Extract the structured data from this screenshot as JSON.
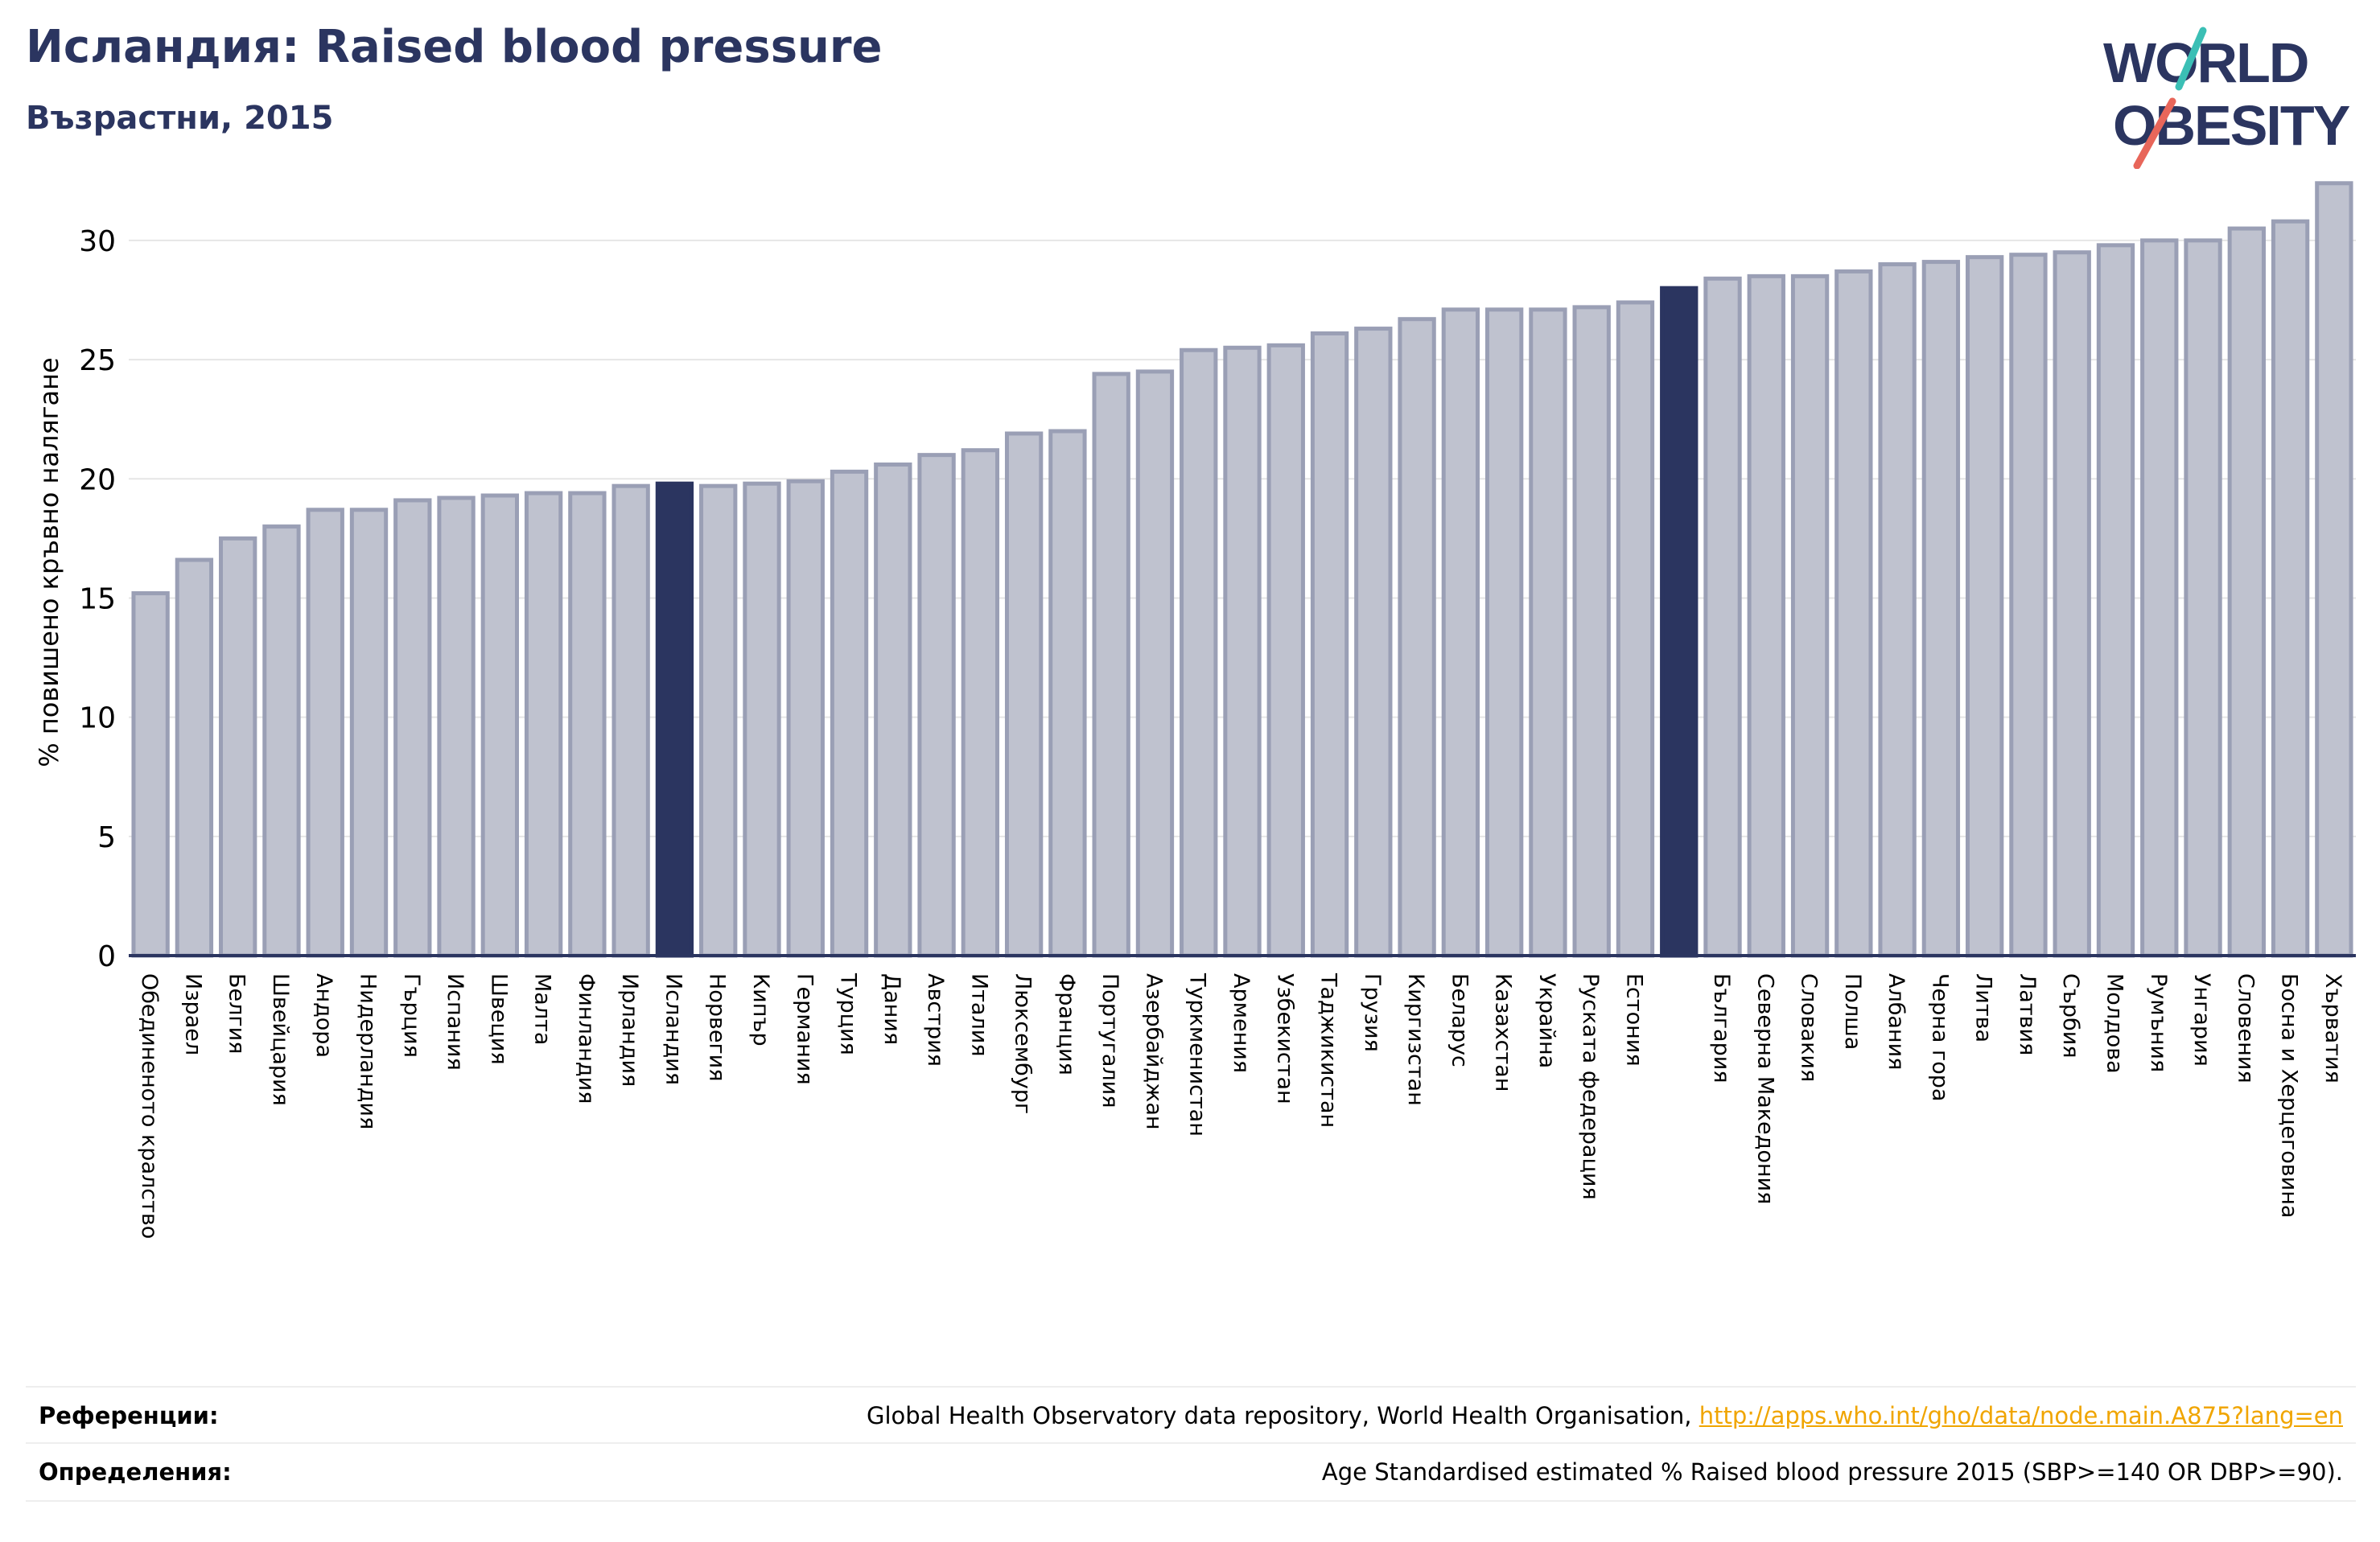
{
  "header": {
    "title": "Исландия: Raised blood pressure",
    "subtitle": "Възрастни, 2015"
  },
  "logo": {
    "line1": "WORLD",
    "line2": "OBESITY",
    "text_color": "#2b3560",
    "slash_colors": [
      "#3bbfb5",
      "#e8665a"
    ]
  },
  "footer": {
    "references_label": "Референции:",
    "references_text": "Global Health Observatory data repository, World Health Organisation, ",
    "references_link": "http://apps.who.int/gho/data/node.main.A875?lang=en",
    "definitions_label": "Определения:",
    "definitions_text": "Age Standardised estimated % Raised blood pressure 2015 (SBP>=140 OR DBP>=90)."
  },
  "colors": {
    "bar": "#bfc2cf",
    "bar_stroke": "#9a9fb5",
    "highlight": "#2b3560",
    "grid": "#e6e6e6",
    "axis": "#2b3560"
  },
  "chart_data": {
    "type": "bar",
    "title": "Исландия: Raised blood pressure",
    "subtitle": "Възрастни, 2015",
    "xlabel": "",
    "ylabel": "% повишено кръвно налягане",
    "ylim": [
      0,
      33
    ],
    "yticks": [
      0,
      5,
      10,
      15,
      20,
      25,
      30
    ],
    "grid": true,
    "categories": [
      "Обединеното кралство",
      "Израел",
      "Белгия",
      "Швейцария",
      "Андора",
      "Нидерландия",
      "Гърция",
      "Испания",
      "Швеция",
      "Малта",
      "Финландия",
      "Ирландия",
      "Исландия",
      "Норвегия",
      "Кипър",
      "Германия",
      "Турция",
      "Дания",
      "Австрия",
      "Италия",
      "Люксембург",
      "Франция",
      "Португалия",
      "Азербайджан",
      "Туркменистан",
      "Армения",
      "Узбекистан",
      "Таджикистан",
      "Грузия",
      "Киргизстан",
      "Беларус",
      "Казахстан",
      "Украйна",
      "Руската федерация",
      "Естония",
      "",
      "България",
      "Северна Македония",
      "Словакия",
      "Полша",
      "Албания",
      "Черна гора",
      "Литва",
      "Латвия",
      "Сърбия",
      "Молдова",
      "Румъния",
      "Унгария",
      "Словения",
      "Босна и Херцеговина",
      "Хърватия"
    ],
    "values": [
      15.2,
      16.6,
      17.5,
      18.0,
      18.7,
      18.7,
      19.1,
      19.2,
      19.3,
      19.4,
      19.4,
      19.7,
      19.8,
      19.7,
      19.8,
      19.9,
      20.3,
      20.6,
      21.0,
      21.2,
      21.9,
      22.0,
      24.4,
      24.5,
      25.4,
      25.5,
      25.6,
      26.1,
      26.3,
      26.7,
      27.1,
      27.1,
      27.1,
      27.2,
      27.4,
      28.0,
      28.4,
      28.5,
      28.5,
      28.7,
      29.0,
      29.1,
      29.3,
      29.4,
      29.5,
      29.8,
      30.0,
      30.0,
      30.5,
      30.8,
      32.4
    ],
    "highlighted": [
      "Исландия",
      ""
    ]
  }
}
